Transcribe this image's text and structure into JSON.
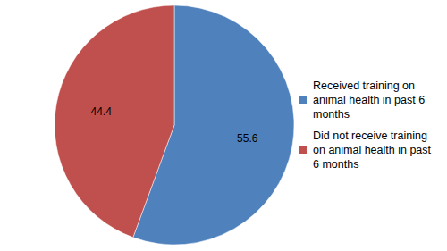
{
  "chart_data": {
    "type": "pie",
    "categories": [
      "Received training on animal health in past 6 months",
      "Did not receive training on animal health in past 6 months"
    ],
    "values": [
      55.6,
      44.4
    ],
    "colors": [
      "#4f81bd",
      "#c0504d"
    ],
    "data_labels": true,
    "legend": "right"
  }
}
